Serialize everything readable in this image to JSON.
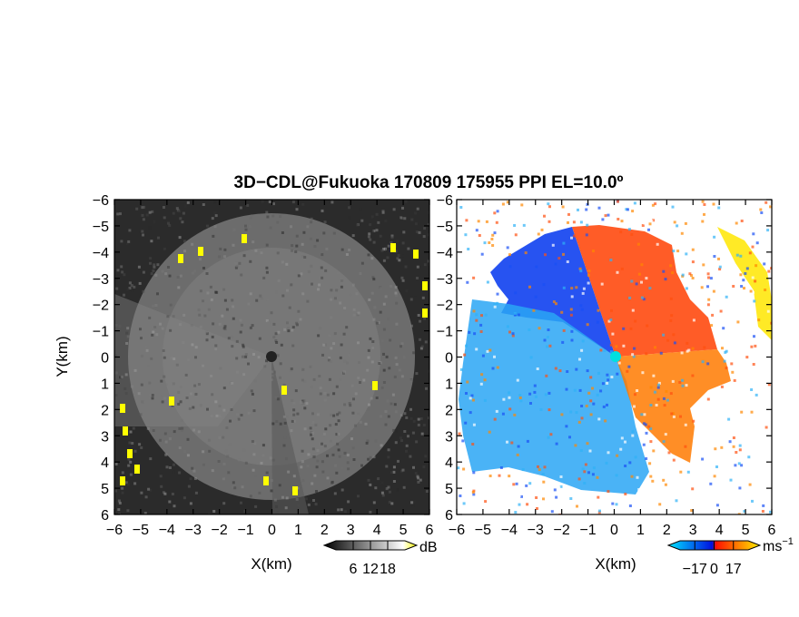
{
  "chart_data": [
    {
      "type": "heatmap",
      "title": "3D−CDL@Fukuoka 170809 175955 PPI EL=10.0º",
      "panel": "left",
      "xlabel": "X(km)",
      "ylabel": "Y(km)",
      "xlim": [
        -6,
        6
      ],
      "ylim": [
        -6,
        6
      ],
      "x_ticks": [
        "−6",
        "−5",
        "−4",
        "−3",
        "−2",
        "−1",
        "0",
        "1",
        "2",
        "3",
        "4",
        "5",
        "6"
      ],
      "y_ticks": [
        "−6",
        "−5",
        "−4",
        "−3",
        "−2",
        "−1",
        "0",
        "1",
        "2",
        "3",
        "4",
        "5",
        "6"
      ],
      "colorbar": {
        "unit": "dB",
        "ticks": [
          "6",
          "12",
          "18"
        ],
        "range": [
          0,
          24
        ],
        "colors": [
          "#000000",
          "#ffffff",
          "#ffff00"
        ]
      },
      "colormap": "grayscale with yellow saturation",
      "grid": false
    },
    {
      "type": "heatmap",
      "panel": "right",
      "xlabel": "X(km)",
      "xlim": [
        -6,
        6
      ],
      "ylim": [
        -6,
        6
      ],
      "x_ticks": [
        "−6",
        "−5",
        "−4",
        "−3",
        "−2",
        "−1",
        "0",
        "1",
        "2",
        "3",
        "4",
        "5",
        "6"
      ],
      "y_ticks": [
        "−6",
        "−5",
        "−4",
        "−3",
        "−2",
        "−1",
        "0",
        "1",
        "2",
        "3",
        "4",
        "5",
        "6"
      ],
      "colorbar": {
        "unit": "ms",
        "unit_exponent": "−1",
        "ticks": [
          "−17",
          "0",
          "17"
        ],
        "range": [
          -30,
          30
        ],
        "colors": [
          "#00e5ff",
          "#0010e0",
          "#ff1000",
          "#ffee00"
        ]
      },
      "colormap": "cyan-blue (toward) / red-yellow (away)",
      "grid": false
    }
  ]
}
